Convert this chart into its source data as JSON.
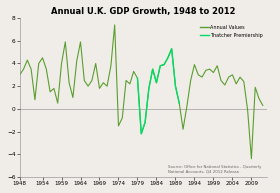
{
  "title": "Annual U.K. GDP Growth, 1948 to 2012",
  "source_text": "Source: Office for National Statistics - Quarterly\nNational Accounts, Q4 2012 Release",
  "ylim": [
    -6.0,
    8.0
  ],
  "yticks": [
    -6.0,
    -4.0,
    -2.0,
    0.0,
    2.0,
    4.0,
    6.0,
    8.0
  ],
  "xtick_labels": [
    "1948",
    "1954",
    "1959",
    "1964",
    "1969",
    "1974",
    "1979",
    "1984",
    "1989",
    "1994",
    "1999",
    "2004",
    "2009"
  ],
  "xtick_positions": [
    1948,
    1954,
    1959,
    1964,
    1969,
    1974,
    1979,
    1984,
    1989,
    1994,
    1999,
    2004,
    2009
  ],
  "thatcher_start": 1979,
  "thatcher_end": 1990,
  "annual_color": "#5a9e2f",
  "thatcher_color": "#00dd66",
  "bg_color": "#f0ede8",
  "years": [
    1948,
    1949,
    1950,
    1951,
    1952,
    1953,
    1954,
    1955,
    1956,
    1957,
    1958,
    1959,
    1960,
    1961,
    1962,
    1963,
    1964,
    1965,
    1966,
    1967,
    1968,
    1969,
    1970,
    1971,
    1972,
    1973,
    1974,
    1975,
    1976,
    1977,
    1978,
    1979,
    1980,
    1981,
    1982,
    1983,
    1984,
    1985,
    1986,
    1987,
    1988,
    1989,
    1990,
    1991,
    1992,
    1993,
    1994,
    1995,
    1996,
    1997,
    1998,
    1999,
    2000,
    2001,
    2002,
    2003,
    2004,
    2005,
    2006,
    2007,
    2008,
    2009,
    2010,
    2011,
    2012
  ],
  "gdp": [
    3.0,
    3.5,
    4.3,
    3.5,
    0.8,
    4.0,
    4.5,
    3.5,
    1.5,
    1.8,
    0.5,
    4.0,
    5.9,
    2.3,
    1.0,
    4.2,
    5.9,
    2.5,
    2.0,
    2.5,
    4.0,
    1.8,
    2.3,
    2.0,
    3.8,
    7.4,
    -1.5,
    -0.8,
    2.5,
    2.2,
    3.3,
    2.7,
    -2.2,
    -1.2,
    1.8,
    3.5,
    2.3,
    3.8,
    3.9,
    4.5,
    5.3,
    2.0,
    0.5,
    -1.8,
    0.2,
    2.5,
    3.9,
    3.0,
    2.8,
    3.4,
    3.5,
    3.2,
    3.8,
    2.5,
    2.1,
    2.8,
    3.0,
    2.2,
    2.8,
    2.4,
    -0.1,
    -4.4,
    1.9,
    0.9,
    0.3
  ]
}
